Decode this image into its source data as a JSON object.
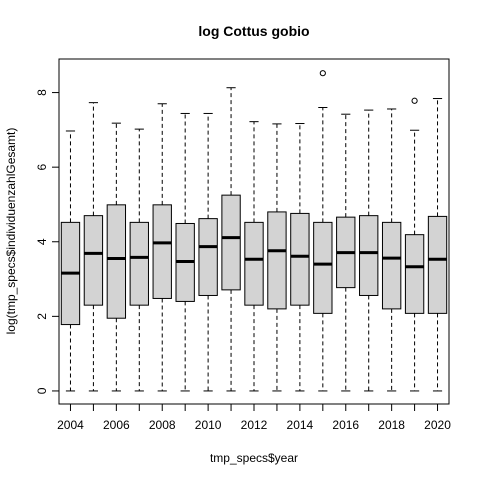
{
  "chart_data": {
    "type": "boxplot",
    "title": "log Cottus gobio",
    "xlabel": "tmp_specs$year",
    "ylabel": "log(tmp_specs$individuenzahlGesamt)",
    "ylim": [
      -0.35,
      8.9
    ],
    "y_ticks": [
      0,
      2,
      4,
      6,
      8
    ],
    "x_tick_labels": [
      "2004",
      "2006",
      "2008",
      "2010",
      "2012",
      "2014",
      "2016",
      "2018",
      "2020"
    ],
    "grid": false,
    "legend": "none",
    "box_fill": "#d3d3d3",
    "boxes": [
      {
        "year": "2004",
        "min": 0,
        "q1": 1.78,
        "median": 3.16,
        "q3": 4.52,
        "max": 6.97,
        "outliers": []
      },
      {
        "year": "2005",
        "min": 0,
        "q1": 2.3,
        "median": 3.69,
        "q3": 4.7,
        "max": 7.73,
        "outliers": []
      },
      {
        "year": "2006",
        "min": 0,
        "q1": 1.95,
        "median": 3.55,
        "q3": 4.99,
        "max": 7.18,
        "outliers": []
      },
      {
        "year": "2007",
        "min": 0,
        "q1": 2.3,
        "median": 3.58,
        "q3": 4.52,
        "max": 7.02,
        "outliers": []
      },
      {
        "year": "2008",
        "min": 0,
        "q1": 2.48,
        "median": 3.97,
        "q3": 4.99,
        "max": 7.7,
        "outliers": []
      },
      {
        "year": "2009",
        "min": 0,
        "q1": 2.4,
        "median": 3.47,
        "q3": 4.49,
        "max": 7.44,
        "outliers": []
      },
      {
        "year": "2010",
        "min": 0,
        "q1": 2.56,
        "median": 3.87,
        "q3": 4.62,
        "max": 7.44,
        "outliers": []
      },
      {
        "year": "2011",
        "min": 0,
        "q1": 2.71,
        "median": 4.11,
        "q3": 5.25,
        "max": 8.13,
        "outliers": []
      },
      {
        "year": "2012",
        "min": 0,
        "q1": 2.3,
        "median": 3.53,
        "q3": 4.52,
        "max": 7.22,
        "outliers": []
      },
      {
        "year": "2013",
        "min": 0,
        "q1": 2.2,
        "median": 3.76,
        "q3": 4.8,
        "max": 7.16,
        "outliers": []
      },
      {
        "year": "2014",
        "min": 0,
        "q1": 2.3,
        "median": 3.61,
        "q3": 4.76,
        "max": 7.17,
        "outliers": []
      },
      {
        "year": "2015",
        "min": 0,
        "q1": 2.08,
        "median": 3.4,
        "q3": 4.52,
        "max": 7.6,
        "outliers": [
          8.52
        ]
      },
      {
        "year": "2016",
        "min": 0,
        "q1": 2.77,
        "median": 3.71,
        "q3": 4.66,
        "max": 7.42,
        "outliers": []
      },
      {
        "year": "2017",
        "min": 0,
        "q1": 2.56,
        "median": 3.71,
        "q3": 4.7,
        "max": 7.53,
        "outliers": []
      },
      {
        "year": "2018",
        "min": 0,
        "q1": 2.2,
        "median": 3.56,
        "q3": 4.52,
        "max": 7.56,
        "outliers": []
      },
      {
        "year": "2019",
        "min": 0,
        "q1": 2.08,
        "median": 3.33,
        "q3": 4.19,
        "max": 6.99,
        "outliers": [
          7.78
        ]
      },
      {
        "year": "2020",
        "min": 0,
        "q1": 2.08,
        "median": 3.53,
        "q3": 4.68,
        "max": 7.84,
        "outliers": []
      }
    ]
  }
}
